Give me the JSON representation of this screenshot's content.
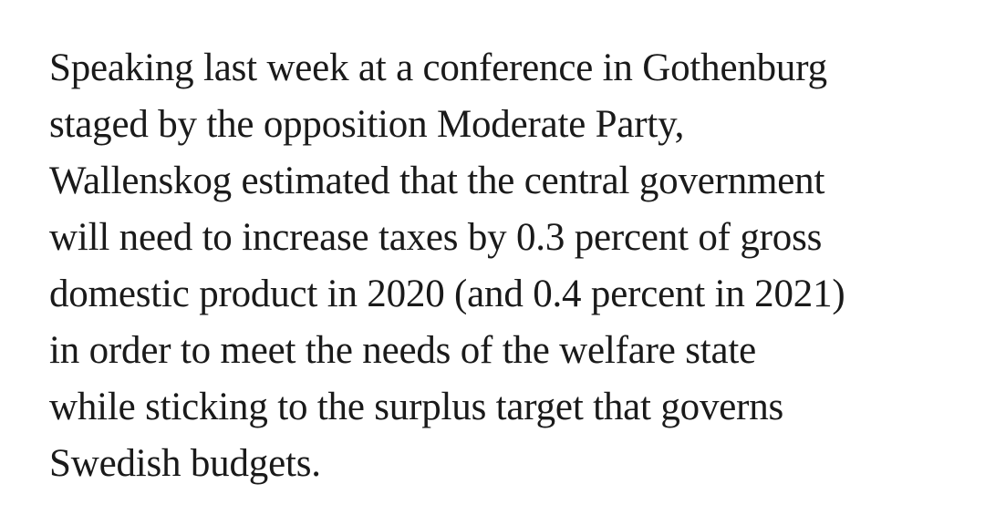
{
  "article": {
    "paragraph_lines": [
      "Speaking last week at a conference in Gothenburg",
      "staged by the opposition Moderate Party,",
      "Wallenskog estimated that the central government",
      "will need to increase taxes by 0.3 percent of gross",
      "domestic product in 2020 (and 0.4 percent in 2021)",
      "in order to meet the needs of the welfare state",
      "while sticking to the surplus target that governs",
      "Swedish budgets."
    ]
  }
}
